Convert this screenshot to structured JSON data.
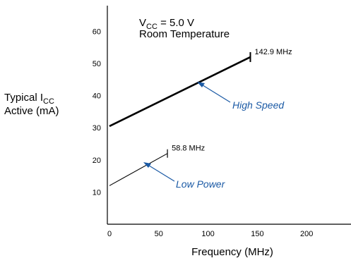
{
  "chart_data": {
    "type": "line",
    "conditions": {
      "vcc_prefix": "V",
      "vcc_sub": "CC",
      "vcc_value": " = 5.0 V",
      "temperature": "Room Temperature"
    },
    "ylabel": {
      "line1_prefix": "Typical I",
      "line1_sub": "CC",
      "line2": "Active (mA)"
    },
    "xlabel": "Frequency (MHz)",
    "xlim": [
      0,
      245
    ],
    "ylim": [
      0,
      68
    ],
    "xticks": [
      "0",
      "50",
      "100",
      "150",
      "200"
    ],
    "yticks": [
      "10",
      "20",
      "30",
      "40",
      "50",
      "60"
    ],
    "series": [
      {
        "name": "High Speed",
        "x": [
          0,
          142.9
        ],
        "y": [
          30.5,
          52
        ],
        "end_label": "142.9 MHz",
        "bold": true
      },
      {
        "name": "Low Power",
        "x": [
          0,
          58.8
        ],
        "y": [
          12,
          22
        ],
        "end_label": "58.8 MHz",
        "bold": false
      }
    ],
    "annotation_color": "#1b5aa5",
    "line_color": "#000000"
  }
}
